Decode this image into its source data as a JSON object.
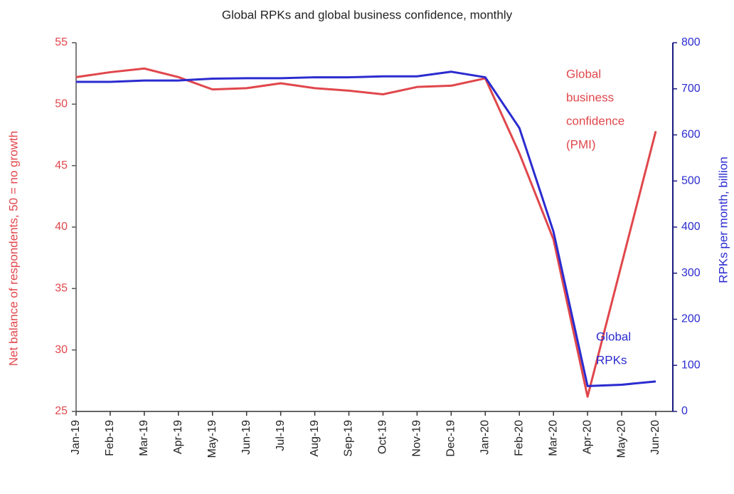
{
  "chart_data": {
    "type": "line",
    "title": "Global RPKs and global business confidence, monthly",
    "categories": [
      "Jan-19",
      "Feb-19",
      "Mar-19",
      "Apr-19",
      "May-19",
      "Jun-19",
      "Jul-19",
      "Aug-19",
      "Sep-19",
      "Oct-19",
      "Nov-19",
      "Dec-19",
      "Jan-20",
      "Feb-20",
      "Mar-20",
      "Apr-20",
      "May-20",
      "Jun-20"
    ],
    "series": [
      {
        "name": "Global business confidence (PMI)",
        "color": "#e0474c",
        "axis": "y",
        "values": [
          52.2,
          52.6,
          52.9,
          52.2,
          51.2,
          51.3,
          51.7,
          51.3,
          51.1,
          50.8,
          51.4,
          51.5,
          52.1,
          46.0,
          39.0,
          26.2,
          37.0,
          47.8
        ]
      },
      {
        "name": "Global RPKs",
        "color": "#2b2bd0",
        "axis": "y2",
        "values": [
          715,
          715,
          718,
          718,
          722,
          723,
          723,
          725,
          725,
          727,
          727,
          737,
          725,
          615,
          390,
          55,
          58,
          65
        ]
      }
    ],
    "annotations": [
      {
        "lines": [
          "Global",
          "business",
          "confidence",
          "(PMI)"
        ],
        "color": "#e0474c"
      },
      {
        "lines": [
          "Global",
          "RPKs"
        ],
        "color": "#2b2bd0"
      }
    ],
    "ylabel": "Net balance of respondents, 50 = no growth",
    "y2label": "RPKs per month, billion",
    "ylim": [
      25,
      55
    ],
    "yticks": [
      25,
      30,
      35,
      40,
      45,
      50,
      55
    ],
    "y2lim": [
      0,
      800
    ],
    "y2ticks": [
      0,
      100,
      200,
      300,
      400,
      500,
      600,
      700,
      800
    ],
    "grid": false
  }
}
